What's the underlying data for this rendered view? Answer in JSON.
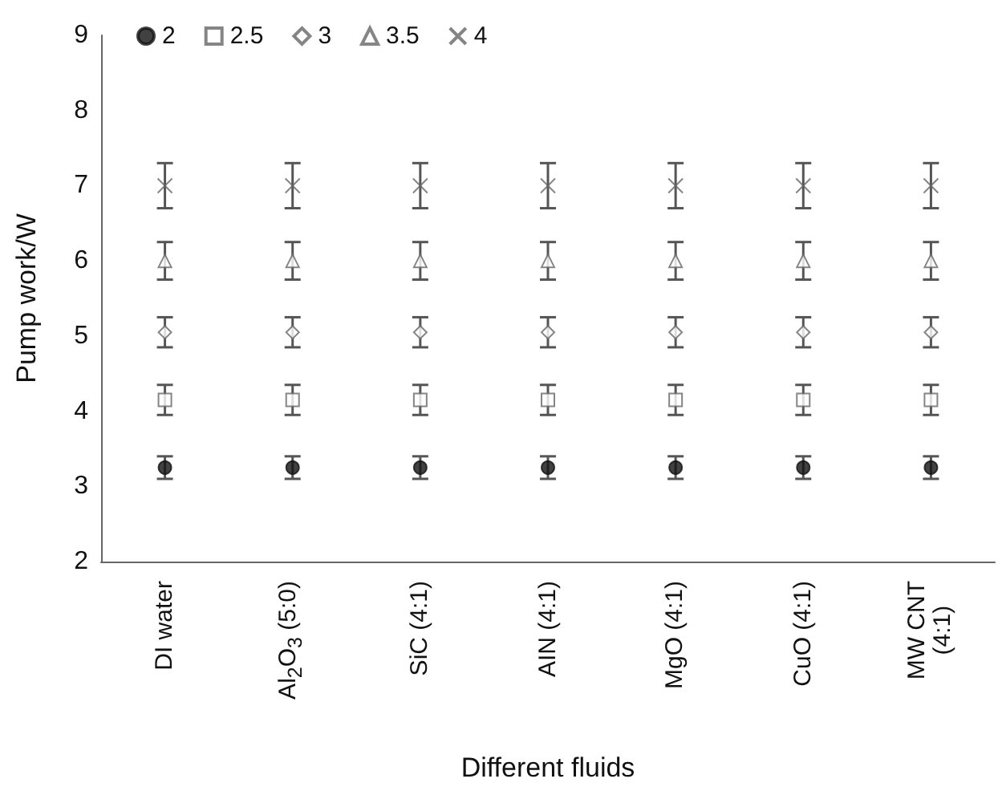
{
  "chart_data": {
    "type": "scatter",
    "xlabel": "Different fluids",
    "ylabel": "Pump work/W",
    "categories": [
      "DI water",
      "Al$_{2}$O$_{3}$ (5:0)",
      "SiC (4:1)",
      "AIN (4:1)",
      "MgO (4:1)",
      "CuO (4:1)",
      "MW CNT (4:1)"
    ],
    "ylim": [
      2,
      9
    ],
    "yticks": [
      2,
      3,
      4,
      5,
      6,
      7,
      8,
      9
    ],
    "grid": false,
    "legend": "top left",
    "series": [
      {
        "name": "2",
        "color": "#111111",
        "marker": "circle",
        "values": [
          3.25,
          3.25,
          3.25,
          3.25,
          3.25,
          3.25,
          3.25
        ],
        "errors": [
          0.15,
          0.15,
          0.15,
          0.15,
          0.15,
          0.15,
          0.15
        ]
      },
      {
        "name": "2.5",
        "color": "#666666",
        "marker": "square",
        "values": [
          4.15,
          4.15,
          4.15,
          4.15,
          4.15,
          4.15,
          4.15
        ],
        "errors": [
          0.2,
          0.2,
          0.2,
          0.2,
          0.2,
          0.2,
          0.2
        ]
      },
      {
        "name": "3",
        "color": "#666666",
        "marker": "diamond",
        "values": [
          5.05,
          5.05,
          5.05,
          5.05,
          5.05,
          5.05,
          5.05
        ],
        "errors": [
          0.2,
          0.2,
          0.2,
          0.2,
          0.2,
          0.2,
          0.2
        ]
      },
      {
        "name": "3.5",
        "color": "#666666",
        "marker": "triangle",
        "values": [
          6.0,
          6.0,
          6.0,
          6.0,
          6.0,
          6.0,
          6.0
        ],
        "errors": [
          0.25,
          0.25,
          0.25,
          0.25,
          0.25,
          0.25,
          0.25
        ]
      },
      {
        "name": "4",
        "color": "#666666",
        "marker": "cross",
        "values": [
          7.0,
          7.0,
          7.0,
          7.0,
          7.0,
          7.0,
          7.0
        ],
        "errors": [
          0.3,
          0.3,
          0.3,
          0.3,
          0.3,
          0.3,
          0.3
        ]
      }
    ]
  }
}
